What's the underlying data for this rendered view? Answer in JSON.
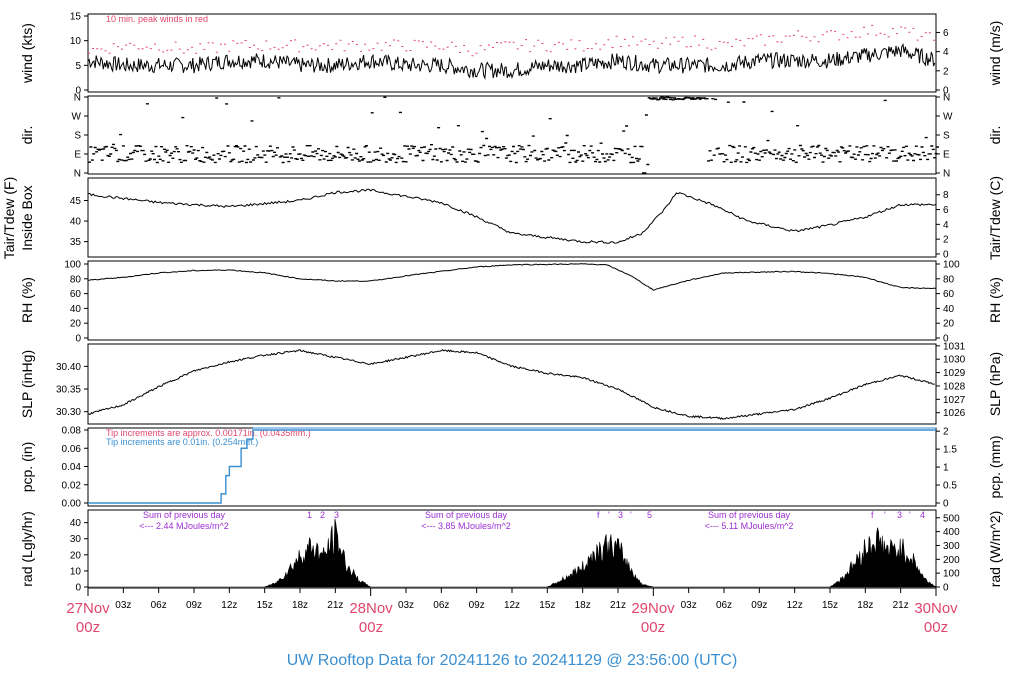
{
  "title": "UW Rooftop Data for 20241126  to  20241129 @ 23:56:00  (UTC)",
  "colors": {
    "accent": "#e0466e",
    "blue": "#3a8fd1",
    "purple": "#9b2fd0",
    "trace": "#000000",
    "frame": "#000000"
  },
  "x_axis": {
    "hour_ticks": [
      "03z",
      "06z",
      "09z",
      "12z",
      "15z",
      "18z",
      "21z"
    ],
    "days": [
      {
        "date": "27Nov",
        "time": "00z"
      },
      {
        "date": "28Nov",
        "time": "00z"
      },
      {
        "date": "29Nov",
        "time": "00z"
      },
      {
        "date": "30Nov",
        "time": "00z"
      }
    ]
  },
  "panels": {
    "wind": {
      "left_label": "wind (kts)",
      "right_label": "wind (m/s)",
      "note": "10 min. peak winds in red",
      "left_ticks": [
        "0",
        "5",
        "10",
        "15"
      ],
      "right_ticks": [
        "0",
        "2",
        "4",
        "6"
      ]
    },
    "dir": {
      "left_label": "dir.",
      "right_label": "dir.",
      "ticks": [
        "N",
        "E",
        "S",
        "W",
        "N"
      ]
    },
    "temp": {
      "left_label_1": "Tair/Tdew (F)",
      "left_label_2": "Inside Box",
      "right_label": "Tair/Tdew (C)",
      "left_ticks": [
        "35",
        "40",
        "45"
      ],
      "right_ticks": [
        "0",
        "2",
        "4",
        "6",
        "8"
      ]
    },
    "rh": {
      "left_label": "RH (%)",
      "right_label": "RH (%)",
      "ticks": [
        "0",
        "20",
        "40",
        "60",
        "80",
        "100"
      ]
    },
    "slp": {
      "left_label": "SLP (inHg)",
      "right_label": "SLP (hPa)",
      "left_ticks": [
        "30.30",
        "30.35",
        "30.40"
      ],
      "right_ticks": [
        "1026",
        "1027",
        "1028",
        "1029",
        "1030",
        "1031"
      ]
    },
    "pcp": {
      "left_label": "pcp. (in)",
      "right_label": "pcp. (mm)",
      "note_red": "Tip increments are approx. 0.00171in. (0.0435mm.)",
      "note_blue": "Tip increments are 0.01in. (0.254mm.)",
      "left_ticks": [
        "0.00",
        "0.02",
        "0.04",
        "0.06",
        "0.08"
      ],
      "right_ticks": [
        "0",
        "0.5",
        "1",
        "1.5",
        "2"
      ]
    },
    "rad": {
      "left_label": "rad (Lgly/hr)",
      "right_label": "rad (W/m^2)",
      "left_ticks": [
        "0",
        "10",
        "20",
        "30",
        "40"
      ],
      "right_ticks": [
        "0",
        "100",
        "200",
        "300",
        "400",
        "500"
      ],
      "day_sums": [
        {
          "line1": "Sum of previous day",
          "line2": "<--- 2.44 MJoules/m^2"
        },
        {
          "line1": "Sum of previous day",
          "line2": "<--- 3.85 MJoules/m^2"
        },
        {
          "line1": "Sum of previous day",
          "line2": "<--- 5.11 MJoules/m^2"
        }
      ],
      "markers": [
        [
          "1",
          "2",
          "3"
        ],
        [
          "f",
          "'",
          "3",
          "'",
          "5"
        ],
        [
          "f",
          "'",
          "3",
          "'",
          "4"
        ]
      ]
    }
  },
  "chart_data": {
    "type": "line",
    "x_range_hours": [
      0,
      72
    ],
    "series": [
      {
        "name": "wind speed (kts)",
        "points": [
          [
            0,
            6
          ],
          [
            3,
            5
          ],
          [
            6,
            5
          ],
          [
            9,
            5
          ],
          [
            12,
            6
          ],
          [
            15,
            6
          ],
          [
            18,
            5
          ],
          [
            21,
            5
          ],
          [
            24,
            6
          ],
          [
            27,
            5
          ],
          [
            30,
            5
          ],
          [
            33,
            4
          ],
          [
            36,
            4
          ],
          [
            39,
            5
          ],
          [
            42,
            5
          ],
          [
            45,
            6
          ],
          [
            48,
            5
          ],
          [
            51,
            5
          ],
          [
            54,
            5
          ],
          [
            57,
            6
          ],
          [
            60,
            6
          ],
          [
            63,
            6
          ],
          [
            66,
            7
          ],
          [
            69,
            8
          ],
          [
            72,
            6
          ]
        ]
      },
      {
        "name": "10 min. peak winds",
        "points": [
          [
            0,
            8
          ],
          [
            3,
            9
          ],
          [
            6,
            9
          ],
          [
            9,
            8
          ],
          [
            12,
            9
          ],
          [
            15,
            9
          ],
          [
            18,
            9
          ],
          [
            21,
            9
          ],
          [
            24,
            9
          ],
          [
            27,
            9
          ],
          [
            30,
            9
          ],
          [
            33,
            8
          ],
          [
            36,
            9
          ],
          [
            39,
            9
          ],
          [
            42,
            9
          ],
          [
            45,
            10
          ],
          [
            48,
            9
          ],
          [
            51,
            10
          ],
          [
            54,
            9
          ],
          [
            57,
            10
          ],
          [
            60,
            11
          ],
          [
            63,
            11
          ],
          [
            66,
            12
          ],
          [
            69,
            12
          ],
          [
            72,
            10
          ]
        ]
      },
      {
        "name": "temperature (F)",
        "points": [
          [
            0,
            46.5
          ],
          [
            3,
            45.5
          ],
          [
            6,
            44.5
          ],
          [
            9,
            44
          ],
          [
            12,
            43.5
          ],
          [
            14,
            44
          ],
          [
            18,
            45
          ],
          [
            21,
            47
          ],
          [
            24,
            47.5
          ],
          [
            27,
            46
          ],
          [
            30,
            44.5
          ],
          [
            33,
            41
          ],
          [
            36,
            37
          ],
          [
            39,
            36
          ],
          [
            42,
            35
          ],
          [
            45,
            34.8
          ],
          [
            47,
            37
          ],
          [
            49,
            43
          ],
          [
            50,
            47
          ],
          [
            53,
            44
          ],
          [
            56,
            40
          ],
          [
            60,
            37.5
          ],
          [
            63,
            39
          ],
          [
            66,
            41
          ],
          [
            69,
            44
          ],
          [
            72,
            44
          ]
        ]
      },
      {
        "name": "RH (%)",
        "points": [
          [
            0,
            78
          ],
          [
            3,
            82
          ],
          [
            6,
            88
          ],
          [
            9,
            91
          ],
          [
            12,
            92
          ],
          [
            15,
            88
          ],
          [
            18,
            80
          ],
          [
            21,
            77
          ],
          [
            24,
            77
          ],
          [
            27,
            84
          ],
          [
            30,
            90
          ],
          [
            33,
            96
          ],
          [
            36,
            99
          ],
          [
            42,
            100
          ],
          [
            44,
            99
          ],
          [
            46,
            85
          ],
          [
            48,
            65
          ],
          [
            51,
            78
          ],
          [
            54,
            88
          ],
          [
            60,
            90
          ],
          [
            63,
            87
          ],
          [
            66,
            82
          ],
          [
            69,
            68
          ],
          [
            72,
            67
          ]
        ]
      },
      {
        "name": "SLP (inHg)",
        "points": [
          [
            0,
            30.295
          ],
          [
            3,
            30.315
          ],
          [
            6,
            30.355
          ],
          [
            9,
            30.39
          ],
          [
            12,
            30.41
          ],
          [
            15,
            30.425
          ],
          [
            18,
            30.435
          ],
          [
            21,
            30.42
          ],
          [
            24,
            30.405
          ],
          [
            27,
            30.42
          ],
          [
            30,
            30.435
          ],
          [
            33,
            30.43
          ],
          [
            36,
            30.4
          ],
          [
            39,
            30.385
          ],
          [
            42,
            30.375
          ],
          [
            45,
            30.35
          ],
          [
            48,
            30.31
          ],
          [
            51,
            30.29
          ],
          [
            54,
            30.285
          ],
          [
            57,
            30.295
          ],
          [
            60,
            30.305
          ],
          [
            63,
            30.33
          ],
          [
            66,
            30.36
          ],
          [
            69,
            30.38
          ],
          [
            72,
            30.36
          ]
        ]
      },
      {
        "name": "pcp (in)",
        "points": [
          [
            0,
            0
          ],
          [
            11,
            0
          ],
          [
            11.3,
            0.01
          ],
          [
            11.7,
            0.03
          ],
          [
            12,
            0.04
          ],
          [
            13,
            0.06
          ],
          [
            13.5,
            0.07
          ],
          [
            14,
            0.08
          ],
          [
            72,
            0.08
          ]
        ]
      },
      {
        "name": "rad (Lgly/hr)",
        "points": [
          [
            0,
            0
          ],
          [
            15,
            0
          ],
          [
            16,
            3
          ],
          [
            17,
            12
          ],
          [
            18,
            22
          ],
          [
            19,
            30
          ],
          [
            20,
            22
          ],
          [
            21,
            38
          ],
          [
            22,
            15
          ],
          [
            23,
            5
          ],
          [
            24,
            0
          ],
          [
            39,
            0
          ],
          [
            40,
            4
          ],
          [
            42,
            14
          ],
          [
            43,
            25
          ],
          [
            44,
            30
          ],
          [
            45,
            28
          ],
          [
            46,
            14
          ],
          [
            47,
            2
          ],
          [
            48,
            0
          ],
          [
            63,
            0
          ],
          [
            64,
            6
          ],
          [
            65,
            16
          ],
          [
            66,
            28
          ],
          [
            67,
            34
          ],
          [
            68,
            26
          ],
          [
            69,
            28
          ],
          [
            70,
            20
          ],
          [
            71,
            6
          ],
          [
            72,
            0
          ]
        ]
      }
    ]
  }
}
